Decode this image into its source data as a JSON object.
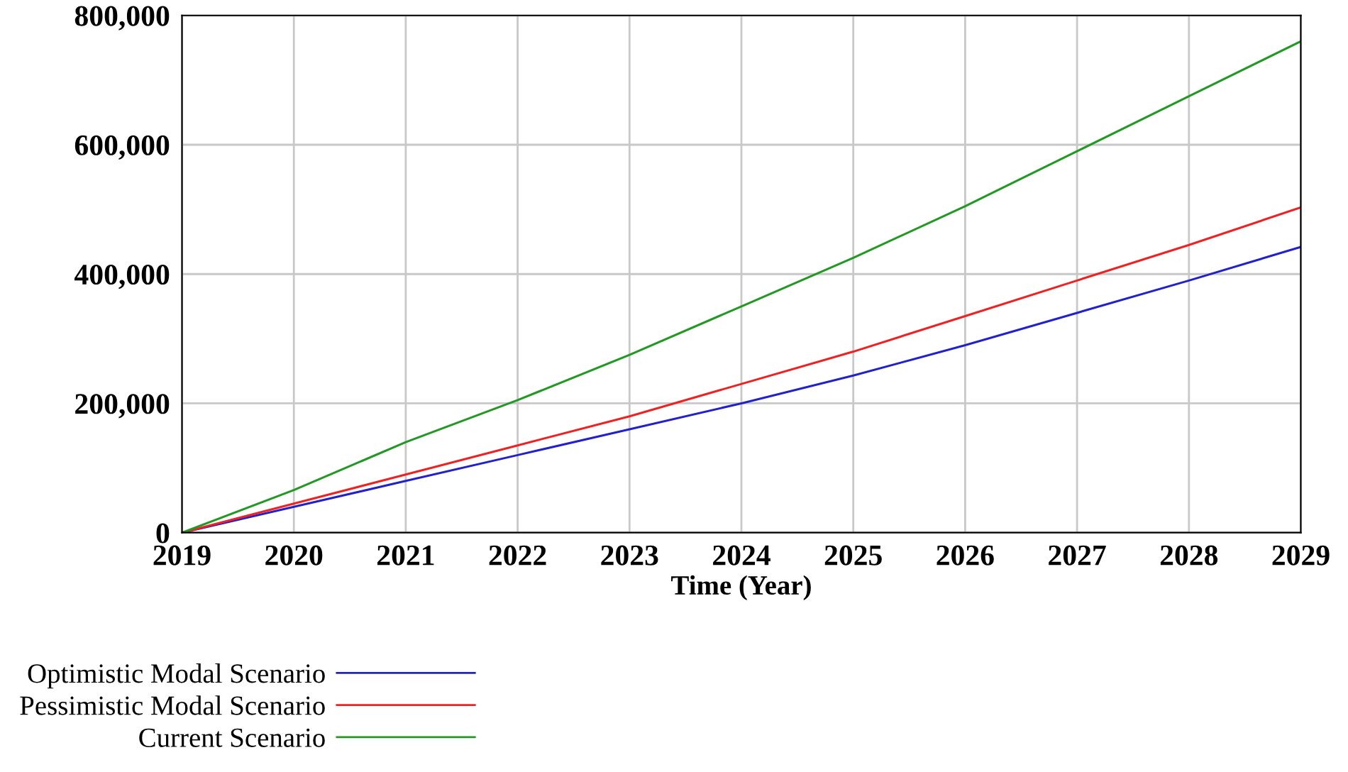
{
  "chart_data": {
    "type": "line",
    "xlabel": "Time (Year)",
    "x": [
      2019,
      2020,
      2021,
      2022,
      2023,
      2024,
      2025,
      2026,
      2027,
      2028,
      2029
    ],
    "series": [
      {
        "name": "Optimistic Modal Scenario",
        "color": "#2222cc",
        "values": [
          0,
          40000,
          80000,
          120000,
          160000,
          200000,
          243000,
          290000,
          340000,
          390000,
          442000
        ]
      },
      {
        "name": "Pessimistic Modal Scenario",
        "color": "#ee2222",
        "values": [
          0,
          45000,
          90000,
          135000,
          180000,
          230000,
          280000,
          335000,
          390000,
          445000,
          503000
        ]
      },
      {
        "name": "Current Scenario",
        "color": "#229922",
        "values": [
          0,
          66000,
          140000,
          205000,
          275000,
          350000,
          425000,
          505000,
          590000,
          675000,
          760000
        ]
      }
    ],
    "xlim": [
      2019,
      2029
    ],
    "xticks": [
      2019,
      2020,
      2021,
      2022,
      2023,
      2024,
      2025,
      2026,
      2027,
      2028,
      2029
    ],
    "ylim": [
      0,
      800000
    ],
    "yticks": [
      {
        "value": 0,
        "label": "0"
      },
      {
        "value": 200000,
        "label": "200,000"
      },
      {
        "value": 400000,
        "label": "400,000"
      },
      {
        "value": 600000,
        "label": "600,000"
      },
      {
        "value": 800000,
        "label": "800,000"
      }
    ],
    "grid": true,
    "legend": "bottom",
    "line_style": "solid"
  }
}
